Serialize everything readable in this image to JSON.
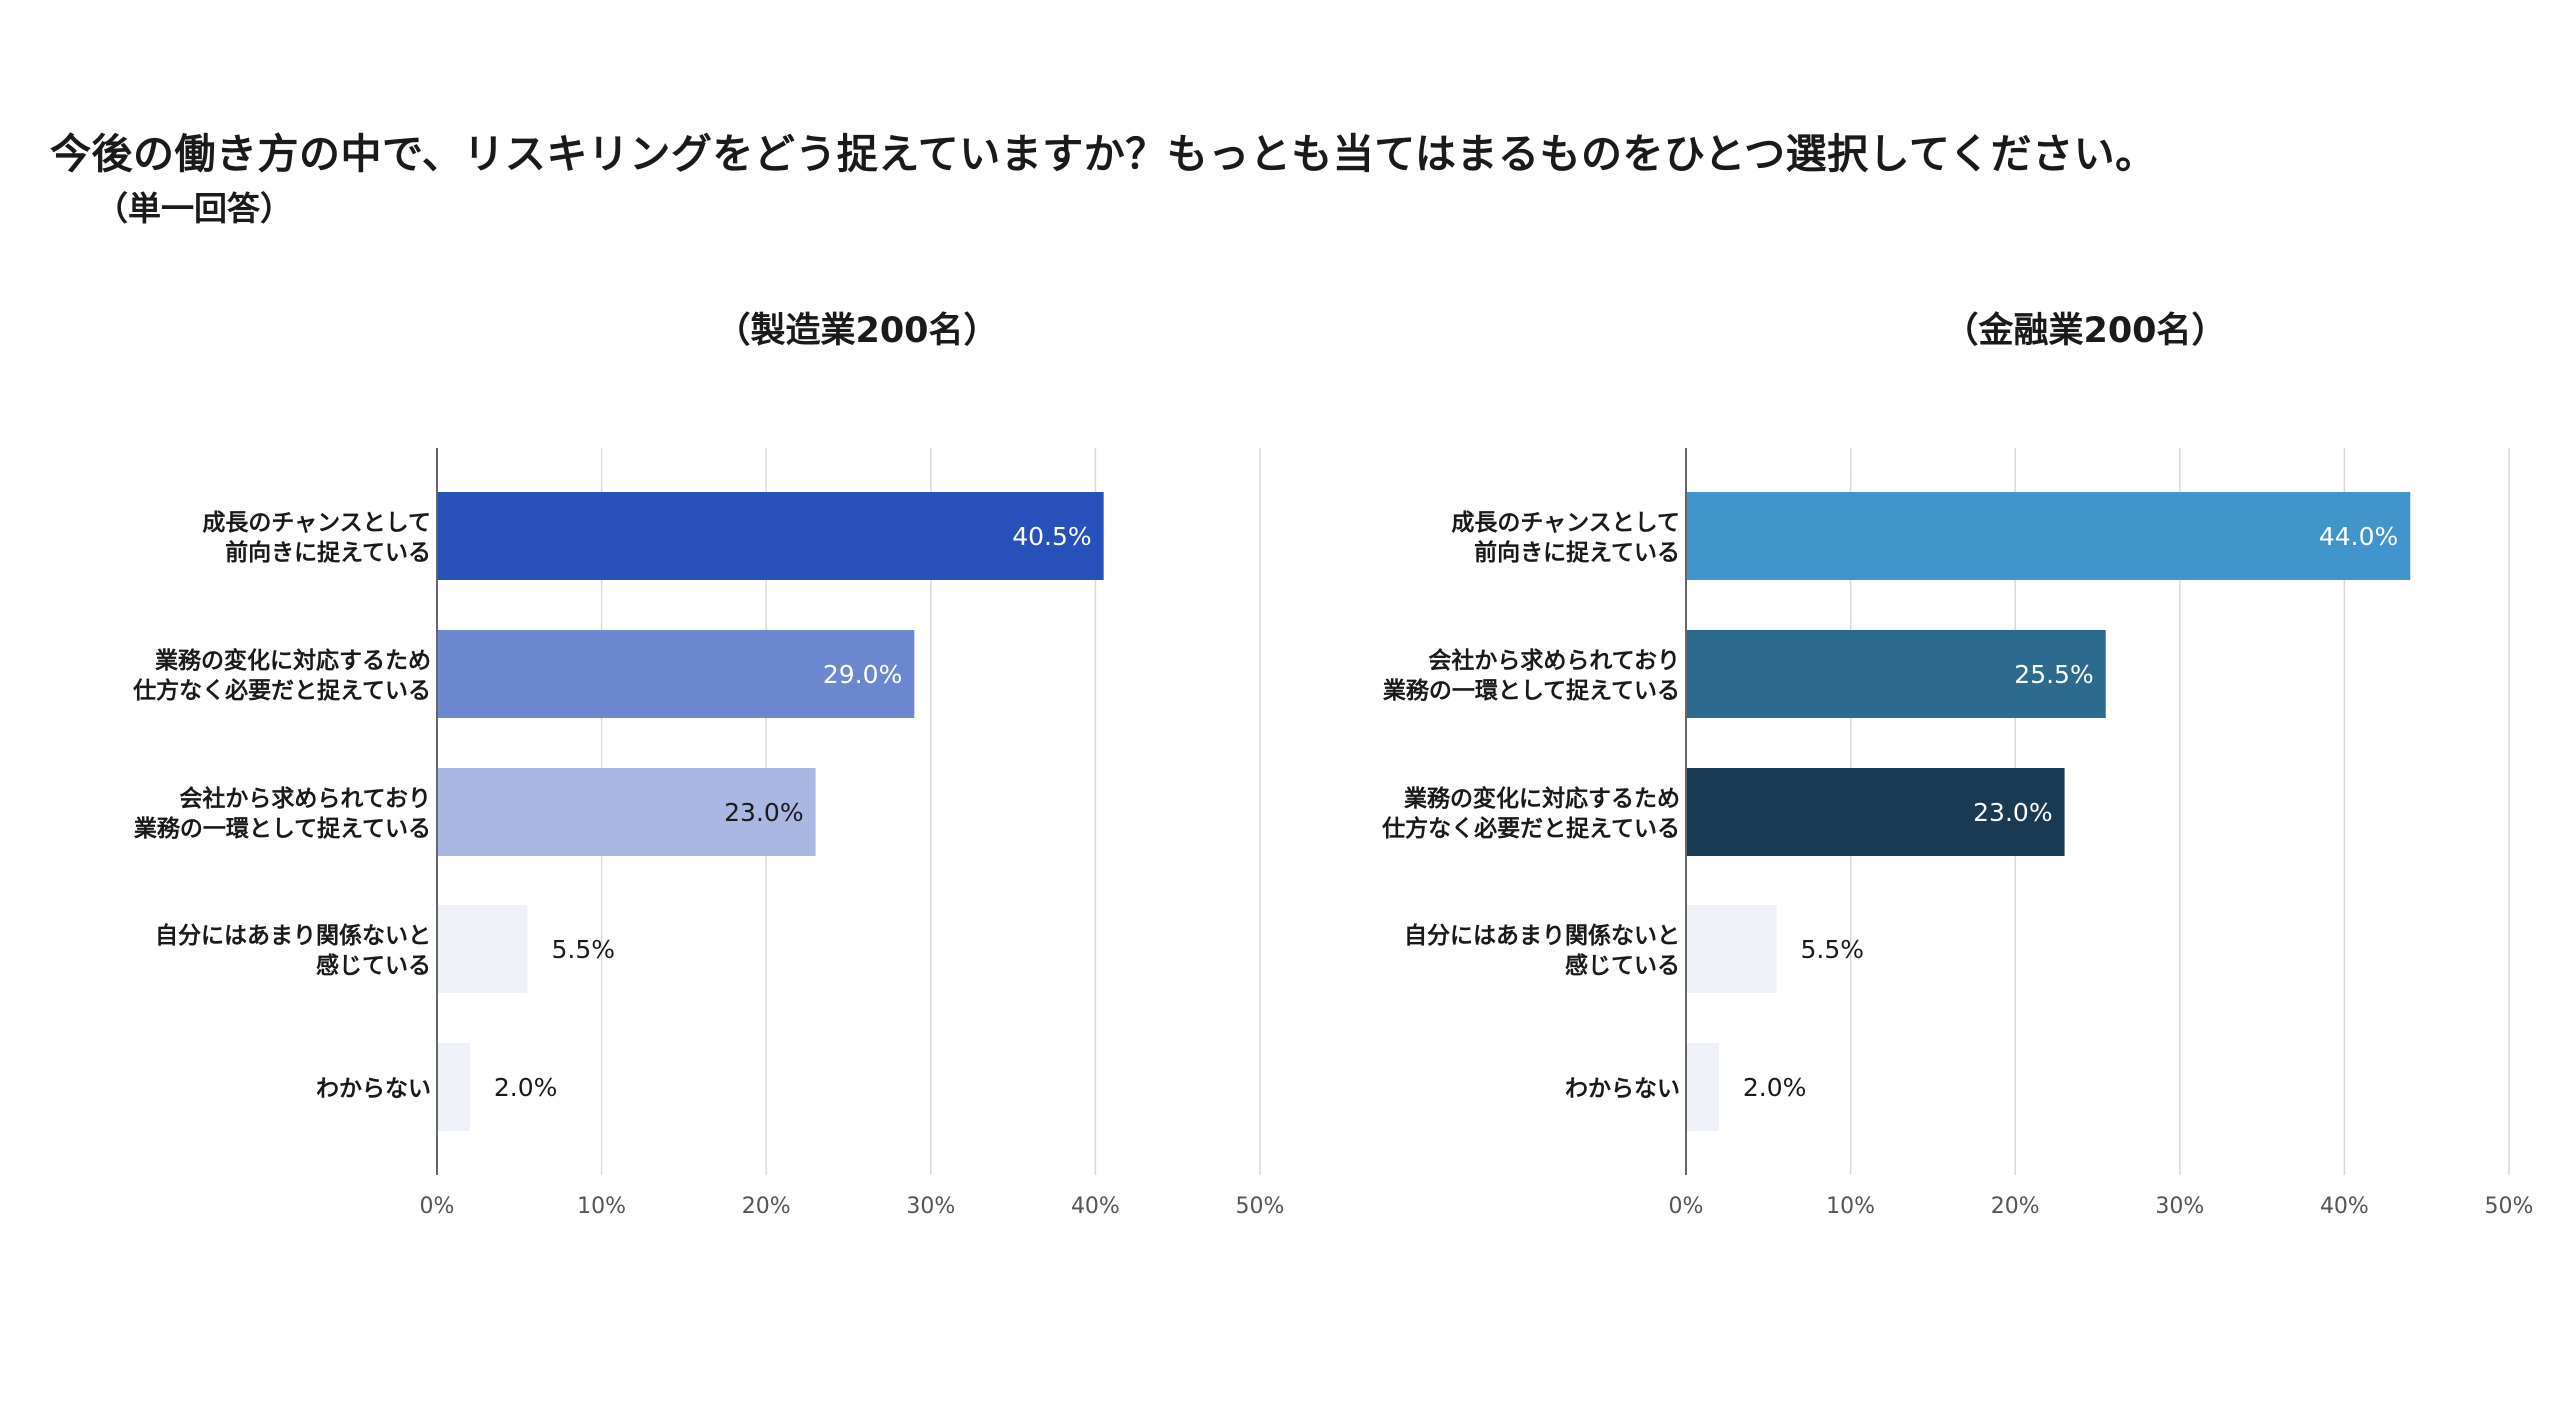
{
  "title": "今後の働き方の中で、リスキリングをどう捉えていますか？もっとも当てはまるものをひとつ選択してください。",
  "subtitle": "（単一回答）",
  "chart_data": [
    {
      "type": "bar",
      "orientation": "horizontal",
      "title": "（製造業200名）",
      "categories": [
        [
          "成長のチャンスとして",
          "前向きに捉えている"
        ],
        [
          "業務の変化に対応するため",
          "仕方なく必要だと捉えている"
        ],
        [
          "会社から求められており",
          "業務の一環として捉えている"
        ],
        [
          "自分にはあまり関係ないと",
          "感じている"
        ],
        [
          "わからない"
        ]
      ],
      "values": [
        40.5,
        29.0,
        23.0,
        5.5,
        2.0
      ],
      "value_labels": [
        "40.5%",
        "29.0%",
        "23.0%",
        "5.5%",
        "2.0%"
      ],
      "colors": [
        "#2850bb",
        "#6a87d0",
        "#a8b8e2",
        "#eef2f8",
        "#eef2f8"
      ],
      "xlim": [
        0,
        50
      ],
      "ticks": [
        "0%",
        "10%",
        "20%",
        "30%",
        "40%",
        "50%"
      ],
      "grid": true
    },
    {
      "type": "bar",
      "orientation": "horizontal",
      "title": "（金融業200名）",
      "categories": [
        [
          "成長のチャンスとして",
          "前向きに捉えている"
        ],
        [
          "会社から求められており",
          "業務の一環として捉えている"
        ],
        [
          "業務の変化に対応するため",
          "仕方なく必要だと捉えている"
        ],
        [
          "自分にはあまり関係ないと",
          "感じている"
        ],
        [
          "わからない"
        ]
      ],
      "values": [
        44.0,
        25.5,
        23.0,
        5.5,
        2.0
      ],
      "value_labels": [
        "44.0%",
        "25.5%",
        "23.0%",
        "5.5%",
        "2.0%"
      ],
      "colors": [
        "#4294cc",
        "#2d6a90",
        "#183a52",
        "#eef2f8",
        "#eef2f8"
      ],
      "xlim": [
        0,
        50
      ],
      "ticks": [
        "0%",
        "10%",
        "20%",
        "30%",
        "40%",
        "50%"
      ],
      "grid": true
    }
  ]
}
